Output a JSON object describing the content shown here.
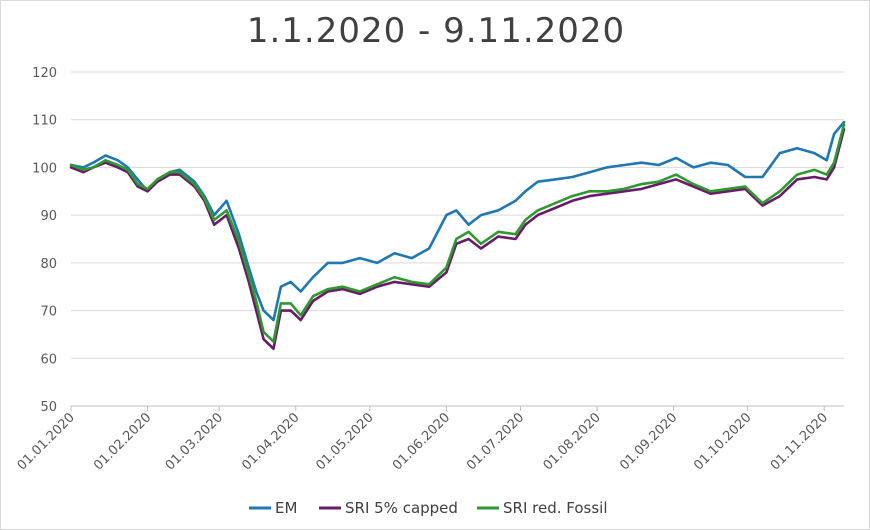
{
  "chart_data": {
    "type": "line",
    "title": "1.1.2020 - 9.11.2020",
    "xlabel": "",
    "ylabel": "",
    "ylim": [
      50,
      120
    ],
    "yticks": [
      50,
      60,
      70,
      80,
      90,
      100,
      110,
      120
    ],
    "xlim": [
      "2020-01-01",
      "2020-11-09"
    ],
    "xticks": [
      {
        "date": "2020-01-01",
        "label": "01.01.2020"
      },
      {
        "date": "2020-02-01",
        "label": "01.02.2020"
      },
      {
        "date": "2020-03-01",
        "label": "01.03.2020"
      },
      {
        "date": "2020-04-01",
        "label": "01.04.2020"
      },
      {
        "date": "2020-05-01",
        "label": "01.05.2020"
      },
      {
        "date": "2020-06-01",
        "label": "01.06.2020"
      },
      {
        "date": "2020-07-01",
        "label": "01.07.2020"
      },
      {
        "date": "2020-08-01",
        "label": "01.08.2020"
      },
      {
        "date": "2020-09-01",
        "label": "01.09.2020"
      },
      {
        "date": "2020-10-01",
        "label": "01.10.2020"
      },
      {
        "date": "2020-11-01",
        "label": "01.11.2020"
      }
    ],
    "grid": true,
    "legend_position": "bottom",
    "x": [
      "2020-01-01",
      "2020-01-06",
      "2020-01-10",
      "2020-01-15",
      "2020-01-20",
      "2020-01-24",
      "2020-01-28",
      "2020-02-01",
      "2020-02-05",
      "2020-02-10",
      "2020-02-14",
      "2020-02-20",
      "2020-02-24",
      "2020-02-28",
      "2020-03-04",
      "2020-03-09",
      "2020-03-13",
      "2020-03-16",
      "2020-03-19",
      "2020-03-23",
      "2020-03-26",
      "2020-03-30",
      "2020-04-03",
      "2020-04-08",
      "2020-04-14",
      "2020-04-20",
      "2020-04-27",
      "2020-05-04",
      "2020-05-11",
      "2020-05-18",
      "2020-05-25",
      "2020-06-01",
      "2020-06-05",
      "2020-06-10",
      "2020-06-15",
      "2020-06-22",
      "2020-06-29",
      "2020-07-03",
      "2020-07-08",
      "2020-07-15",
      "2020-07-22",
      "2020-07-29",
      "2020-08-05",
      "2020-08-12",
      "2020-08-19",
      "2020-08-26",
      "2020-09-02",
      "2020-09-09",
      "2020-09-16",
      "2020-09-23",
      "2020-09-30",
      "2020-10-07",
      "2020-10-14",
      "2020-10-21",
      "2020-10-28",
      "2020-11-02",
      "2020-11-05",
      "2020-11-09"
    ],
    "series": [
      {
        "name": "EM",
        "color": "#1f77b4",
        "values": [
          100.5,
          100.0,
          101.0,
          102.5,
          101.5,
          100.0,
          97.5,
          95.0,
          97.5,
          99.0,
          99.5,
          97.0,
          94.0,
          90.0,
          93.0,
          86.0,
          79.0,
          74.0,
          70.0,
          68.0,
          75.0,
          76.0,
          74.0,
          77.0,
          80.0,
          80.0,
          81.0,
          80.0,
          82.0,
          81.0,
          83.0,
          90.0,
          91.0,
          88.0,
          90.0,
          91.0,
          93.0,
          95.0,
          97.0,
          97.5,
          98.0,
          99.0,
          100.0,
          100.5,
          101.0,
          100.5,
          102.0,
          100.0,
          101.0,
          100.5,
          98.0,
          98.0,
          103.0,
          104.0,
          103.0,
          101.5,
          107.0,
          109.5
        ]
      },
      {
        "name": "SRI 5% capped",
        "color": "#6a1a6a",
        "values": [
          100.0,
          99.0,
          100.0,
          101.0,
          100.0,
          99.0,
          96.0,
          95.0,
          97.0,
          98.5,
          98.5,
          96.0,
          93.0,
          88.0,
          90.0,
          83.0,
          76.0,
          70.0,
          64.0,
          62.0,
          70.0,
          70.0,
          68.0,
          72.0,
          74.0,
          74.5,
          73.5,
          75.0,
          76.0,
          75.5,
          75.0,
          78.0,
          84.0,
          85.0,
          83.0,
          85.5,
          85.0,
          88.0,
          90.0,
          91.5,
          93.0,
          94.0,
          94.5,
          95.0,
          95.5,
          96.5,
          97.5,
          96.0,
          94.5,
          95.0,
          95.5,
          92.0,
          94.0,
          97.5,
          98.0,
          97.5,
          100.0,
          108.0
        ]
      },
      {
        "name": "SRI red. Fossil",
        "color": "#2e9a2e",
        "values": [
          100.5,
          99.5,
          100.0,
          101.5,
          100.5,
          99.5,
          96.5,
          95.5,
          97.5,
          99.0,
          99.0,
          96.5,
          93.5,
          89.0,
          91.0,
          84.5,
          77.5,
          72.0,
          65.5,
          63.5,
          71.5,
          71.5,
          69.0,
          73.0,
          74.5,
          75.0,
          74.0,
          75.5,
          77.0,
          76.0,
          75.5,
          79.0,
          85.0,
          86.5,
          84.0,
          86.5,
          86.0,
          89.0,
          91.0,
          92.5,
          94.0,
          95.0,
          95.0,
          95.5,
          96.5,
          97.0,
          98.5,
          96.5,
          95.0,
          95.5,
          96.0,
          92.5,
          95.0,
          98.5,
          99.5,
          98.5,
          101.0,
          109.0
        ]
      }
    ]
  }
}
